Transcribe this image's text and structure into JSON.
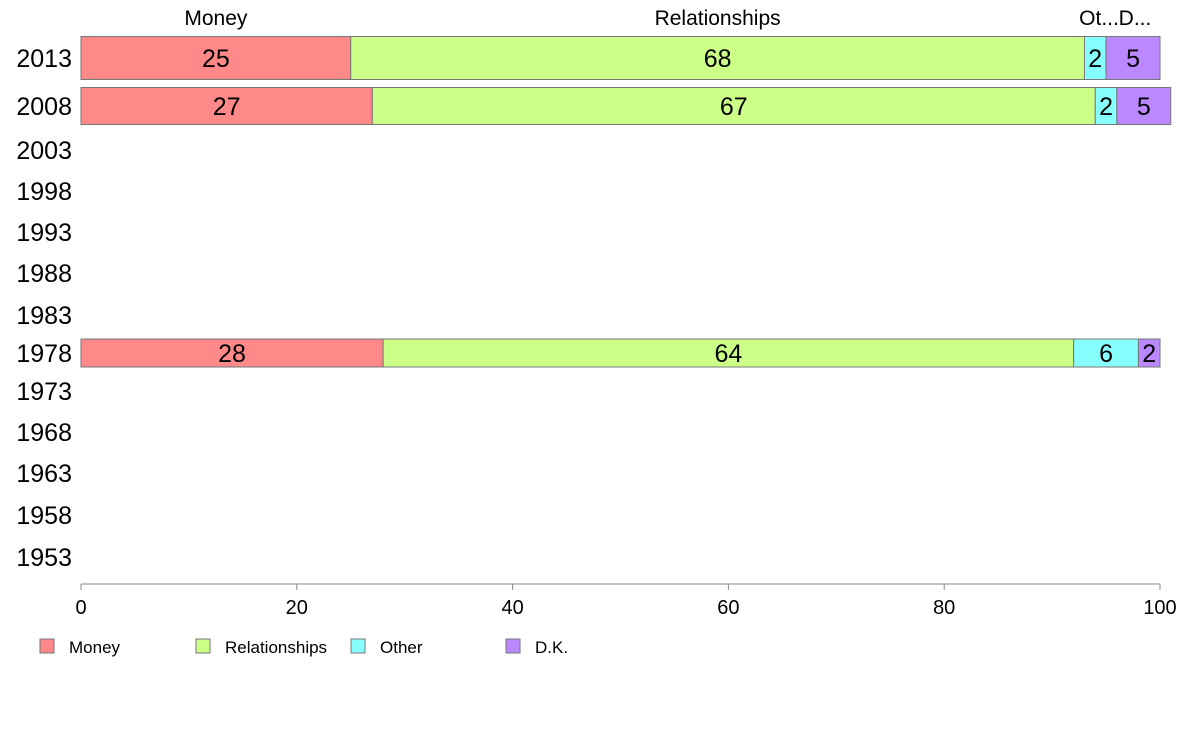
{
  "chart_data": {
    "type": "bar",
    "orientation": "horizontal",
    "stacked": true,
    "categories": [
      "2013",
      "2008",
      "2003",
      "1998",
      "1993",
      "1988",
      "1983",
      "1978",
      "1973",
      "1968",
      "1963",
      "1958",
      "1953"
    ],
    "series": [
      {
        "name": "Money",
        "color": "#ff8888",
        "values": [
          25,
          27,
          null,
          null,
          null,
          null,
          null,
          28,
          null,
          null,
          null,
          null,
          null
        ]
      },
      {
        "name": "Relationships",
        "color": "#ccff88",
        "values": [
          68,
          67,
          null,
          null,
          null,
          null,
          null,
          64,
          null,
          null,
          null,
          null,
          null
        ]
      },
      {
        "name": "Other",
        "color": "#88ffff",
        "values": [
          2,
          2,
          null,
          null,
          null,
          null,
          null,
          6,
          null,
          null,
          null,
          null,
          null
        ]
      },
      {
        "name": "D.K.",
        "color": "#bb88ff",
        "values": [
          5,
          5,
          null,
          null,
          null,
          null,
          null,
          2,
          null,
          null,
          null,
          null,
          null
        ]
      }
    ],
    "top_labels": [
      "Money",
      "Relationships",
      "Ot...",
      "D..."
    ],
    "xlim": [
      0,
      100
    ],
    "xticks": [
      0,
      20,
      40,
      60,
      80,
      100
    ],
    "grid": false,
    "legend_position": "bottom"
  }
}
